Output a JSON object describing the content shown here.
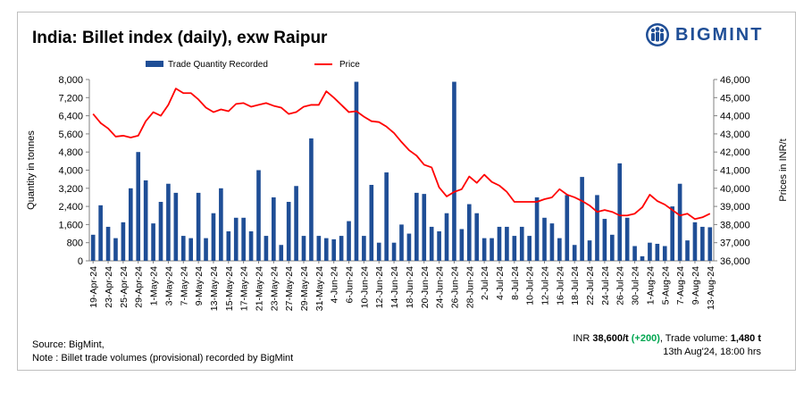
{
  "title": "India: Billet index (daily), exw Raipur",
  "brand": {
    "name": "BIGMINT",
    "color": "#1f4e96",
    "icon": "people-globe-icon"
  },
  "source_line": "Source: BigMint,",
  "note_line": "Note : Billet trade volumes (provisional) recorded by BigMint",
  "summary": {
    "price_prefix": "INR ",
    "price_value": "38,600/t",
    "change": "(+200)",
    "volume_label": ", Trade volume: ",
    "volume_value": "1,480 t",
    "timestamp": "13th Aug'24, 18:00 hrs"
  },
  "chart_data": {
    "type": "bar+line",
    "legend_placement": "top",
    "grid": false,
    "series": [
      {
        "name": "Trade Quantity Recorded",
        "kind": "bar",
        "axis": "left",
        "color": "#1f4e96"
      },
      {
        "name": "Price",
        "kind": "line",
        "axis": "right",
        "color": "#ff0000"
      }
    ],
    "ylabel": "Quantity in tonnes",
    "y2label": "Prices in INR/t",
    "ylim": [
      0,
      8000
    ],
    "y2lim": [
      36000,
      46000
    ],
    "yticks": [
      "0",
      "800",
      "1,600",
      "2,400",
      "3,200",
      "4,000",
      "4,800",
      "5,600",
      "6,400",
      "7,200",
      "8,000"
    ],
    "y2ticks": [
      "36,000",
      "37,000",
      "38,000",
      "39,000",
      "40,000",
      "41,000",
      "42,000",
      "43,000",
      "44,000",
      "45,000",
      "46,000"
    ],
    "xtick_labels": [
      "19-Apr-24",
      "23-Apr-24",
      "25-Apr-24",
      "29-Apr-24",
      "1-May-24",
      "3-May-24",
      "7-May-24",
      "9-May-24",
      "13-May-24",
      "15-May-24",
      "17-May-24",
      "21-May-24",
      "23-May-24",
      "27-May-24",
      "29-May-24",
      "31-May-24",
      "4-Jun-24",
      "6-Jun-24",
      "10-Jun-24",
      "12-Jun-24",
      "14-Jun-24",
      "18-Jun-24",
      "20-Jun-24",
      "24-Jun-24",
      "26-Jun-24",
      "28-Jun-24",
      "2-Jul-24",
      "4-Jul-24",
      "8-Jul-24",
      "10-Jul-24",
      "12-Jul-24",
      "16-Jul-24",
      "18-Jul-24",
      "22-Jul-24",
      "24-Jul-24",
      "26-Jul-24",
      "30-Jul-24",
      "1-Aug-24",
      "5-Aug-24",
      "7-Aug-24",
      "9-Aug-24",
      "13-Aug-24"
    ],
    "volumes": [
      1150,
      2450,
      1500,
      1000,
      1700,
      3200,
      4800,
      3550,
      1650,
      2600,
      3400,
      3000,
      1100,
      1000,
      3000,
      1000,
      2100,
      3200,
      1300,
      1900,
      1900,
      1300,
      4000,
      1100,
      2800,
      700,
      2600,
      3300,
      1100,
      5400,
      1100,
      1000,
      950,
      1100,
      1750,
      7900,
      1100,
      3350,
      800,
      3900,
      800,
      1600,
      1200,
      3000,
      2950,
      1500,
      1300,
      2100,
      7900,
      1400,
      2500,
      2100,
      1000,
      1000,
      1500,
      1500,
      1100,
      1500,
      1100,
      2800,
      1900,
      1650,
      1000,
      2900,
      700,
      3700,
      900,
      2900,
      1850,
      1150,
      4300,
      1900,
      650,
      200,
      800,
      750,
      650,
      2400,
      3400,
      900,
      1700,
      1500,
      1480
    ],
    "prices": [
      44100,
      43600,
      43300,
      42850,
      42900,
      42800,
      42900,
      43700,
      44200,
      44000,
      44600,
      45500,
      45250,
      45250,
      44900,
      44450,
      44200,
      44350,
      44250,
      44650,
      44700,
      44500,
      44600,
      44700,
      44550,
      44450,
      44100,
      44200,
      44500,
      44600,
      44600,
      45350,
      45000,
      44600,
      44200,
      44250,
      43950,
      43700,
      43650,
      43400,
      43050,
      42550,
      42100,
      41800,
      41300,
      41150,
      40050,
      39550,
      39800,
      39950,
      40650,
      40300,
      40750,
      40350,
      40150,
      39800,
      39250,
      39250,
      39250,
      39250,
      39400,
      39500,
      39950,
      39650,
      39500,
      39300,
      39050,
      38700,
      38800,
      38700,
      38500,
      38500,
      38600,
      38950,
      39650,
      39300,
      39100,
      38800,
      38500,
      38600,
      38300,
      38400,
      38600
    ]
  }
}
